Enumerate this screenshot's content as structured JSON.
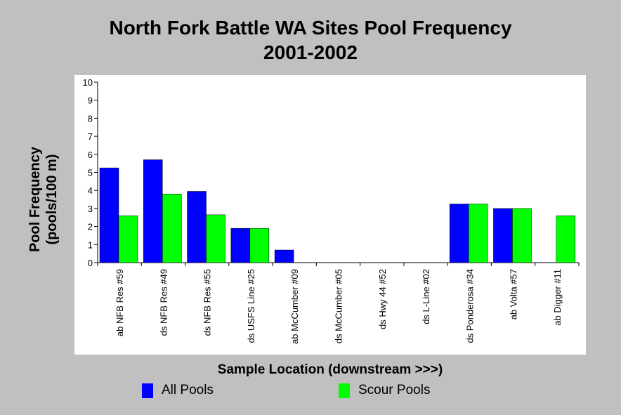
{
  "chart_data": {
    "type": "bar",
    "title_line1": "North Fork Battle WA Sites Pool Frequency",
    "title_line2": "2001-2002",
    "ylabel_line1": "Pool Frequency",
    "ylabel_line2": "(pools/100 m)",
    "xlabel": "Sample Location (downstream >>>)",
    "ylim": [
      0,
      10
    ],
    "yticks": [
      "0",
      "1",
      "2",
      "3",
      "4",
      "5",
      "6",
      "7",
      "8",
      "9",
      "10"
    ],
    "categories": [
      "ab NFB Res #59",
      "ds NFB Res #49",
      "ds NFB Res #55",
      "ds USFS Line #25",
      "ab McCumber #09",
      "ds McCumber #05",
      "ds Hwy 44 #52",
      "ds L-Line #02",
      "ds Ponderosa #34",
      "ab Volta #57",
      "ab Digger #11"
    ],
    "series": [
      {
        "name": "All Pools",
        "color": "#0000ff",
        "values": [
          5.25,
          5.7,
          3.95,
          1.9,
          0.7,
          0,
          0,
          0,
          3.25,
          3.0,
          0
        ]
      },
      {
        "name": "Scour Pools",
        "color": "#00ff00",
        "values": [
          2.6,
          3.8,
          2.65,
          1.9,
          0,
          0,
          0,
          0,
          3.25,
          3.0,
          2.6
        ]
      }
    ],
    "grid": false,
    "legend_position": "bottom"
  }
}
